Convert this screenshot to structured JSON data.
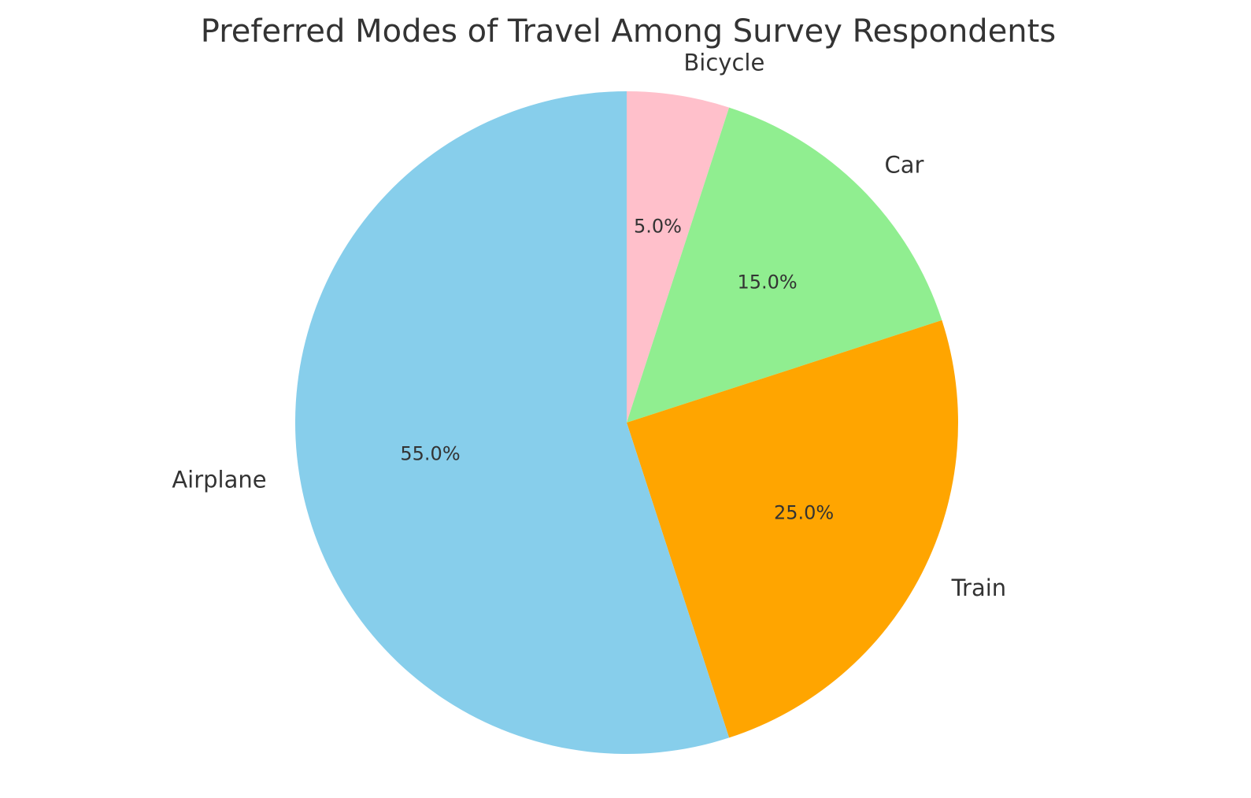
{
  "chart_data": {
    "type": "pie",
    "title": "Preferred Modes of Travel Among Survey Respondents",
    "categories": [
      "Bicycle",
      "Car",
      "Train",
      "Airplane"
    ],
    "values": [
      5.0,
      15.0,
      25.0,
      55.0
    ],
    "value_labels": [
      "5.0%",
      "15.0%",
      "25.0%",
      "55.0%"
    ],
    "colors": [
      "#ffc0cb",
      "#90ee90",
      "#ffa500",
      "#87ceeb"
    ],
    "start_angle": "top (12 o'clock)",
    "direction": "clockwise",
    "legend": "none"
  }
}
